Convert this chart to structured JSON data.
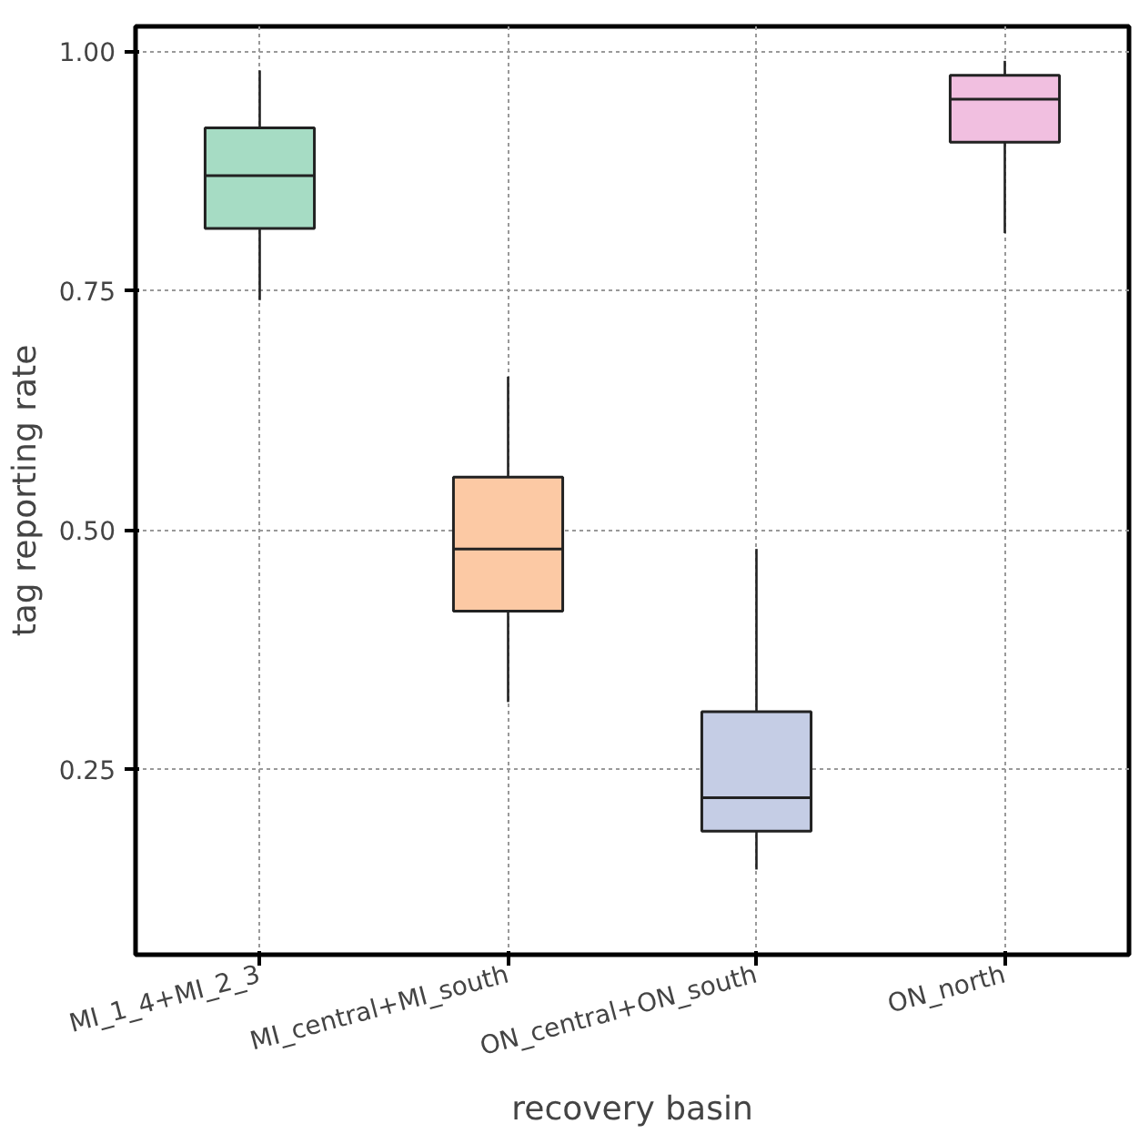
{
  "chart_data": {
    "type": "box",
    "xlabel": "recovery basin",
    "ylabel": "tag reporting rate",
    "categories": [
      "MI_1_4+MI_2_3",
      "MI_central+MI_south",
      "ON_central+ON_south",
      "ON_north"
    ],
    "boxes": [
      {
        "low": 0.74,
        "q1": 0.815,
        "median": 0.87,
        "q3": 0.92,
        "high": 0.98
      },
      {
        "low": 0.32,
        "q1": 0.415,
        "median": 0.48,
        "q3": 0.555,
        "high": 0.66
      },
      {
        "low": 0.145,
        "q1": 0.185,
        "median": 0.22,
        "q3": 0.31,
        "high": 0.48
      },
      {
        "low": 0.81,
        "q1": 0.905,
        "median": 0.95,
        "q3": 0.975,
        "high": 0.99
      }
    ],
    "colors": [
      "#a6dcc4",
      "#fcc9a4",
      "#c5cde5",
      "#f1bfe0"
    ],
    "ylim": [
      0.056,
      1.026
    ],
    "yticks": [
      0.25,
      {
        "value": 0.5,
        "label": "0.50"
      },
      0.75,
      {
        "value": 1.0,
        "label": "1.00"
      }
    ],
    "grid": true
  }
}
